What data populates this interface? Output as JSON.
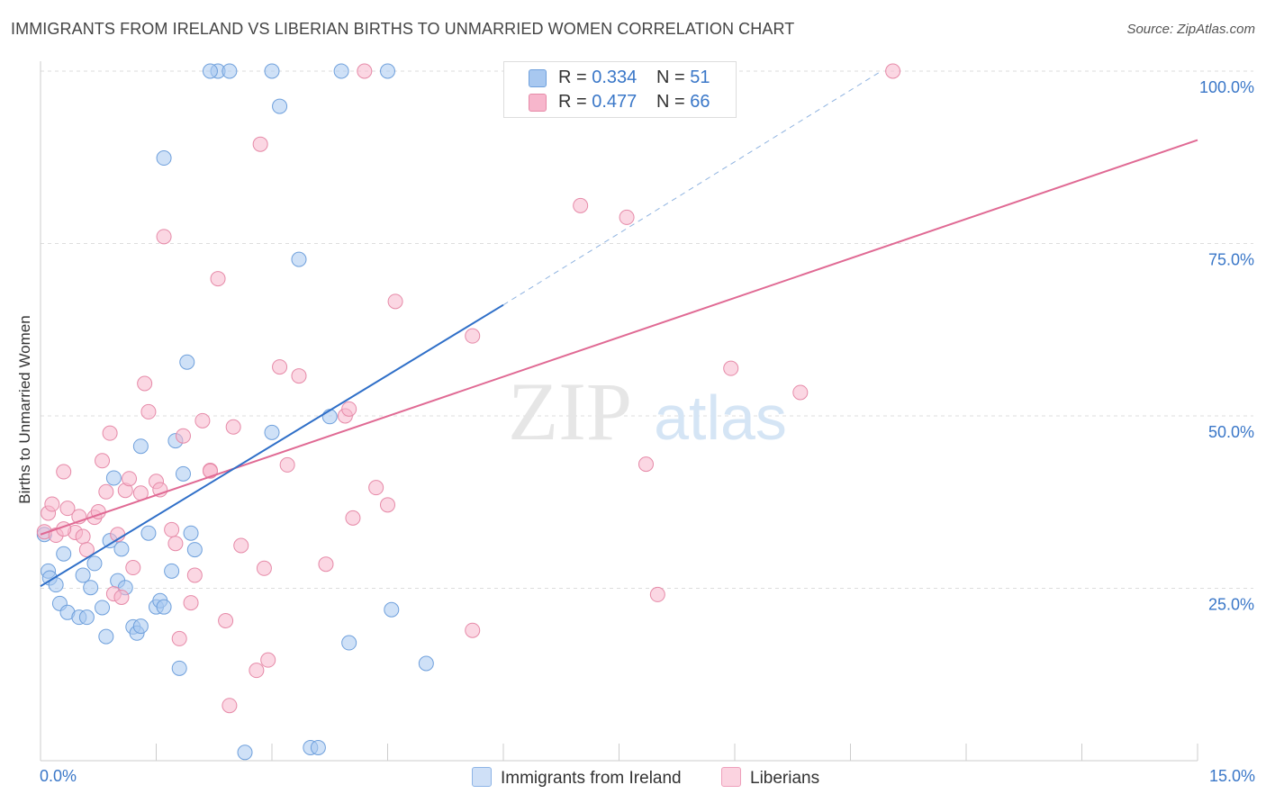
{
  "title": "IMMIGRANTS FROM IRELAND VS LIBERIAN BIRTHS TO UNMARRIED WOMEN CORRELATION CHART",
  "source": "Source: ZipAtlas.com",
  "watermark": {
    "zip": "ZIP",
    "atlas": "atlas"
  },
  "legend": {
    "r_label": "R = ",
    "n_label": "N = ",
    "rows": [
      {
        "r": "0.334",
        "n": "51",
        "color": "#a8c8f0"
      },
      {
        "r": "0.477",
        "n": "66",
        "color": "#f7b6cc"
      }
    ]
  },
  "bottom_legend": [
    {
      "label": "Immigrants from Ireland",
      "color": "#a8c8f0"
    },
    {
      "label": "Liberians",
      "color": "#f7b6cc"
    }
  ],
  "colors": {
    "blue_fill": "#a8c8f0",
    "blue_stroke": "#6fa0dc",
    "blue_line": "#2f6fc8",
    "pink_fill": "#f7b6cc",
    "pink_stroke": "#e68aa8",
    "pink_line": "#e06a94",
    "axis_text": "#3a77c8",
    "grid": "#dddddd"
  },
  "chart_data": {
    "type": "scatter",
    "title": "IMMIGRANTS FROM IRELAND VS LIBERIAN BIRTHS TO UNMARRIED WOMEN CORRELATION CHART",
    "xlabel": "",
    "ylabel": "Births to Unmarried Women",
    "xlim": [
      0,
      15
    ],
    "ylim": [
      0,
      100
    ],
    "x_tick_labels": [
      "0.0%",
      "15.0%"
    ],
    "y_ticks": [
      25,
      50,
      75,
      100
    ],
    "y_tick_labels": [
      "25.0%",
      "50.0%",
      "75.0%",
      "100.0%"
    ],
    "grid": true,
    "legend_position": "top-center",
    "series": [
      {
        "name": "Immigrants from Ireland",
        "r": 0.334,
        "n": 51,
        "trend": {
          "x": [
            0,
            6
          ],
          "y": [
            25.3,
            66.1
          ],
          "dashed_to": [
            10.9,
            100
          ]
        },
        "points": [
          [
            0.05,
            32.8
          ],
          [
            0.1,
            27.5
          ],
          [
            0.12,
            26.5
          ],
          [
            0.2,
            25.5
          ],
          [
            0.25,
            22.8
          ],
          [
            0.3,
            30.0
          ],
          [
            0.35,
            21.5
          ],
          [
            0.5,
            20.8
          ],
          [
            0.55,
            26.9
          ],
          [
            0.6,
            20.8
          ],
          [
            0.65,
            25.1
          ],
          [
            0.7,
            28.6
          ],
          [
            0.8,
            22.2
          ],
          [
            0.85,
            18.0
          ],
          [
            0.9,
            31.9
          ],
          [
            0.95,
            41.0
          ],
          [
            1.0,
            26.1
          ],
          [
            1.05,
            30.7
          ],
          [
            1.1,
            25.1
          ],
          [
            1.2,
            19.4
          ],
          [
            1.25,
            18.5
          ],
          [
            1.3,
            19.5
          ],
          [
            1.3,
            45.6
          ],
          [
            1.4,
            33.0
          ],
          [
            1.5,
            22.3
          ],
          [
            1.55,
            23.2
          ],
          [
            1.6,
            22.3
          ],
          [
            1.6,
            87.4
          ],
          [
            1.7,
            27.5
          ],
          [
            1.75,
            46.4
          ],
          [
            1.8,
            13.4
          ],
          [
            1.85,
            41.6
          ],
          [
            1.9,
            57.8
          ],
          [
            1.95,
            33.0
          ],
          [
            2.0,
            30.6
          ],
          [
            2.3,
            100
          ],
          [
            2.45,
            100
          ],
          [
            2.65,
            1.2
          ],
          [
            3.0,
            100
          ],
          [
            3.0,
            47.6
          ],
          [
            3.1,
            94.9
          ],
          [
            3.35,
            72.7
          ],
          [
            3.5,
            1.9
          ],
          [
            3.6,
            1.9
          ],
          [
            3.75,
            49.9
          ],
          [
            3.9,
            100
          ],
          [
            4.0,
            17.1
          ],
          [
            4.5,
            100
          ],
          [
            4.55,
            21.9
          ],
          [
            5.0,
            14.1
          ],
          [
            2.2,
            100
          ]
        ]
      },
      {
        "name": "Liberians",
        "r": 0.477,
        "n": 66,
        "trend": {
          "x": [
            0,
            15
          ],
          "y": [
            32.8,
            90.0
          ]
        },
        "points": [
          [
            0.05,
            33.2
          ],
          [
            0.1,
            35.9
          ],
          [
            0.15,
            37.2
          ],
          [
            0.2,
            32.7
          ],
          [
            0.3,
            41.9
          ],
          [
            0.35,
            36.6
          ],
          [
            0.45,
            33.1
          ],
          [
            0.5,
            35.4
          ],
          [
            0.55,
            32.5
          ],
          [
            0.6,
            30.6
          ],
          [
            0.7,
            35.3
          ],
          [
            0.75,
            36.1
          ],
          [
            0.8,
            43.5
          ],
          [
            0.85,
            39.0
          ],
          [
            0.9,
            47.5
          ],
          [
            0.95,
            24.2
          ],
          [
            1.0,
            32.8
          ],
          [
            1.05,
            23.7
          ],
          [
            1.1,
            39.2
          ],
          [
            1.15,
            40.9
          ],
          [
            1.2,
            28.0
          ],
          [
            1.3,
            38.8
          ],
          [
            1.35,
            54.7
          ],
          [
            1.4,
            50.6
          ],
          [
            1.5,
            40.5
          ],
          [
            1.55,
            39.3
          ],
          [
            1.6,
            76.0
          ],
          [
            1.7,
            33.5
          ],
          [
            1.75,
            31.5
          ],
          [
            1.8,
            17.7
          ],
          [
            1.85,
            47.1
          ],
          [
            1.95,
            22.9
          ],
          [
            2.0,
            26.9
          ],
          [
            2.1,
            49.3
          ],
          [
            2.2,
            42.1
          ],
          [
            2.3,
            69.9
          ],
          [
            2.4,
            20.3
          ],
          [
            2.5,
            48.4
          ],
          [
            2.6,
            31.2
          ],
          [
            2.8,
            13.1
          ],
          [
            2.85,
            89.4
          ],
          [
            2.9,
            27.9
          ],
          [
            2.95,
            14.6
          ],
          [
            3.1,
            57.1
          ],
          [
            3.2,
            42.9
          ],
          [
            3.35,
            55.8
          ],
          [
            3.7,
            28.5
          ],
          [
            3.95,
            50.0
          ],
          [
            4.0,
            51.0
          ],
          [
            4.05,
            35.2
          ],
          [
            4.2,
            100
          ],
          [
            4.35,
            39.6
          ],
          [
            4.5,
            37.1
          ],
          [
            4.6,
            66.6
          ],
          [
            5.6,
            61.6
          ],
          [
            5.6,
            18.9
          ],
          [
            7.0,
            80.5
          ],
          [
            7.6,
            78.8
          ],
          [
            7.85,
            43.0
          ],
          [
            8.0,
            24.1
          ],
          [
            8.95,
            56.9
          ],
          [
            9.85,
            53.4
          ],
          [
            11.05,
            100
          ],
          [
            2.45,
            8.0
          ],
          [
            2.2,
            42.0
          ],
          [
            0.3,
            33.6
          ]
        ]
      }
    ]
  }
}
